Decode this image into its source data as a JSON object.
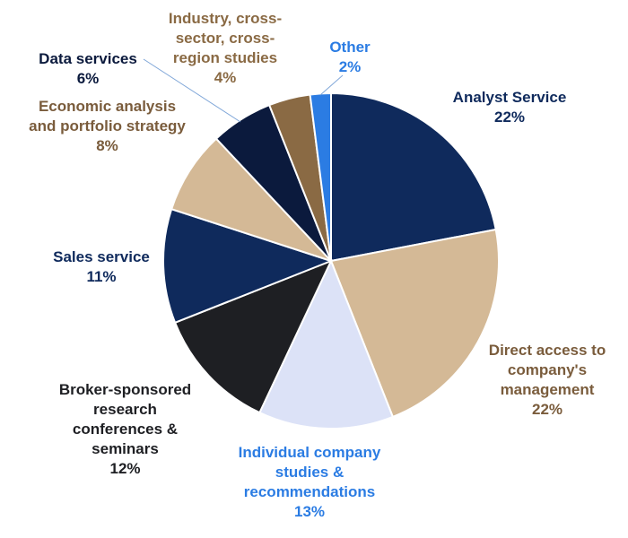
{
  "chart_data": {
    "type": "pie",
    "title": "",
    "start_angle_deg": 0,
    "direction": "clockwise",
    "slices": [
      {
        "label": "Analyst Service",
        "value": 22,
        "value_label": "22%",
        "color": "#0f2a5c",
        "label_color": "#0f2a5c"
      },
      {
        "label": "Direct access to company's management",
        "value": 22,
        "value_label": "22%",
        "color": "#d4b996",
        "label_color": "#7a5c3c"
      },
      {
        "label": "Individual company studies & recommendations",
        "value": 13,
        "value_label": "13%",
        "color": "#dce2f7",
        "label_color": "#2b7ce3"
      },
      {
        "label": "Broker-sponsored research conferences & seminars",
        "value": 12,
        "value_label": "12%",
        "color": "#1e1f23",
        "label_color": "#1e1f23"
      },
      {
        "label": "Sales service",
        "value": 11,
        "value_label": "11%",
        "color": "#0f2a5c",
        "label_color": "#0f2a5c"
      },
      {
        "label": "Economic analysis and portfolio strategy",
        "value": 8,
        "value_label": "8%",
        "color": "#d4b996",
        "label_color": "#7a5c3c"
      },
      {
        "label": "Data services",
        "value": 6,
        "value_label": "6%",
        "color": "#0b1a3d",
        "label_color": "#0b1a3d"
      },
      {
        "label": "Industry, cross-sector, cross-region studies",
        "value": 4,
        "value_label": "4%",
        "color": "#8a6a44",
        "label_color": "#8a6a44"
      },
      {
        "label": "Other",
        "value": 2,
        "value_label": "2%",
        "color": "#2b7ce3",
        "label_color": "#2b7ce3"
      }
    ]
  }
}
